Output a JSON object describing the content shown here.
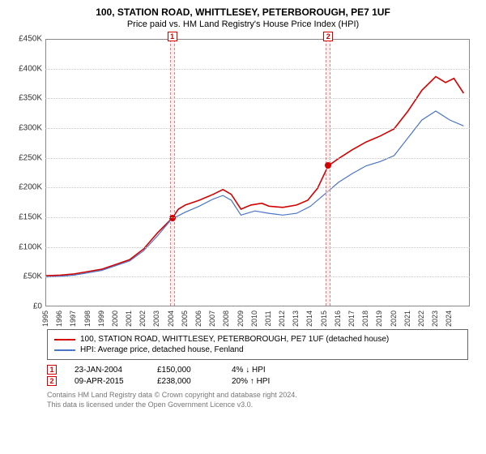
{
  "title": "100, STATION ROAD, WHITTLESEY, PETERBOROUGH, PE7 1UF",
  "subtitle": "Price paid vs. HM Land Registry's House Price Index (HPI)",
  "chart": {
    "type": "line",
    "x_start": 1995,
    "x_end": 2025.5,
    "ylim": [
      0,
      450000
    ],
    "ytick_step": 50000,
    "y_prefix": "£",
    "y_suffix": "K",
    "y_scale": 1000,
    "grid_color": "#c8c8c8",
    "border_color": "#888888",
    "background_color": "#ffffff",
    "xticks": [
      1995,
      1996,
      1997,
      1998,
      1999,
      2000,
      2001,
      2002,
      2003,
      2004,
      2005,
      2006,
      2007,
      2008,
      2009,
      2010,
      2011,
      2012,
      2013,
      2014,
      2015,
      2016,
      2017,
      2018,
      2019,
      2020,
      2021,
      2022,
      2023,
      2024
    ],
    "series": [
      {
        "name": "100, STATION ROAD, WHITTLESEY, PETERBOROUGH, PE7 1UF (detached house)",
        "color": "#d40000",
        "line_width": 1.6,
        "points": [
          [
            1995,
            53000
          ],
          [
            1996,
            54000
          ],
          [
            1997,
            56000
          ],
          [
            1998,
            60000
          ],
          [
            1999,
            64000
          ],
          [
            2000,
            72000
          ],
          [
            2001,
            80000
          ],
          [
            2002,
            98000
          ],
          [
            2003,
            125000
          ],
          [
            2004.06,
            150000
          ],
          [
            2004.5,
            165000
          ],
          [
            2005,
            172000
          ],
          [
            2006,
            180000
          ],
          [
            2007,
            190000
          ],
          [
            2007.7,
            198000
          ],
          [
            2008.3,
            190000
          ],
          [
            2009,
            165000
          ],
          [
            2009.7,
            172000
          ],
          [
            2010.5,
            175000
          ],
          [
            2011,
            170000
          ],
          [
            2012,
            168000
          ],
          [
            2013,
            172000
          ],
          [
            2013.8,
            180000
          ],
          [
            2014.5,
            200000
          ],
          [
            2015.27,
            238000
          ],
          [
            2016,
            250000
          ],
          [
            2017,
            265000
          ],
          [
            2018,
            278000
          ],
          [
            2019,
            288000
          ],
          [
            2020,
            300000
          ],
          [
            2021,
            330000
          ],
          [
            2022,
            365000
          ],
          [
            2023,
            388000
          ],
          [
            2023.7,
            378000
          ],
          [
            2024.3,
            385000
          ],
          [
            2025,
            360000
          ]
        ]
      },
      {
        "name": "HPI: Average price, detached house, Fenland",
        "color": "#4a74c9",
        "line_width": 1.2,
        "points": [
          [
            1995,
            51000
          ],
          [
            1996,
            52000
          ],
          [
            1997,
            54000
          ],
          [
            1998,
            58000
          ],
          [
            1999,
            62000
          ],
          [
            2000,
            70000
          ],
          [
            2001,
            78000
          ],
          [
            2002,
            95000
          ],
          [
            2003,
            120000
          ],
          [
            2004,
            148000
          ],
          [
            2005,
            160000
          ],
          [
            2006,
            170000
          ],
          [
            2007,
            182000
          ],
          [
            2007.7,
            188000
          ],
          [
            2008.3,
            180000
          ],
          [
            2009,
            155000
          ],
          [
            2010,
            162000
          ],
          [
            2011,
            158000
          ],
          [
            2012,
            155000
          ],
          [
            2013,
            158000
          ],
          [
            2014,
            170000
          ],
          [
            2015,
            190000
          ],
          [
            2016,
            210000
          ],
          [
            2017,
            225000
          ],
          [
            2018,
            238000
          ],
          [
            2019,
            245000
          ],
          [
            2020,
            255000
          ],
          [
            2021,
            285000
          ],
          [
            2022,
            315000
          ],
          [
            2023,
            330000
          ],
          [
            2024,
            315000
          ],
          [
            2025,
            305000
          ]
        ]
      }
    ],
    "sale_markers": [
      {
        "n": "1",
        "year": 2004.06,
        "price": 150000,
        "color": "#d40000",
        "band_color": "#ffe0e0"
      },
      {
        "n": "2",
        "year": 2015.27,
        "price": 238000,
        "color": "#d40000",
        "band_color": "#ffe0e0"
      }
    ],
    "marker_label_top_offset": -10
  },
  "legend": {
    "items": [
      {
        "color": "#d40000",
        "label": "100, STATION ROAD, WHITTLESEY, PETERBOROUGH, PE7 1UF (detached house)"
      },
      {
        "color": "#4a74c9",
        "label": "HPI: Average price, detached house, Fenland"
      }
    ]
  },
  "sales": [
    {
      "n": "1",
      "color": "#d40000",
      "date": "23-JAN-2004",
      "price": "£150,000",
      "delta": "4% ↓ HPI"
    },
    {
      "n": "2",
      "color": "#d40000",
      "date": "09-APR-2015",
      "price": "£238,000",
      "delta": "20% ↑ HPI"
    }
  ],
  "footer": {
    "line1": "Contains HM Land Registry data © Crown copyright and database right 2024.",
    "line2": "This data is licensed under the Open Government Licence v3.0."
  }
}
